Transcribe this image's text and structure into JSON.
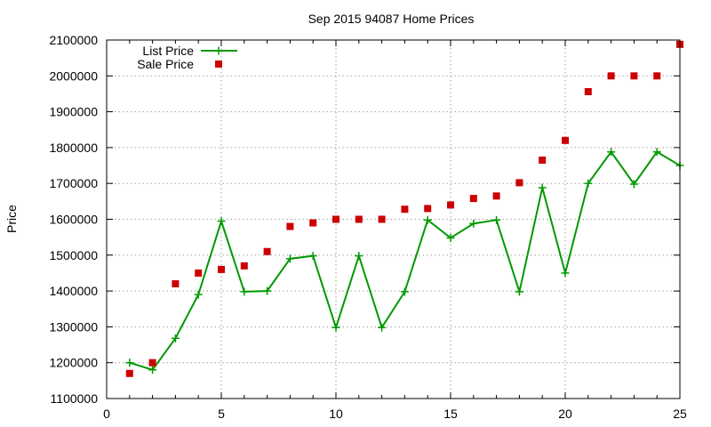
{
  "chart_data": {
    "type": "line",
    "title": "Sep 2015 94087 Home Prices",
    "xlabel": "",
    "ylabel": "Price",
    "xlim": [
      0,
      25
    ],
    "ylim": [
      1100000,
      2100000
    ],
    "x_ticks": [
      0,
      5,
      10,
      15,
      20,
      25
    ],
    "y_ticks": [
      1100000,
      1200000,
      1300000,
      1400000,
      1500000,
      1600000,
      1700000,
      1800000,
      1900000,
      2000000,
      2100000
    ],
    "grid": true,
    "legend_position": "top-left",
    "series": [
      {
        "name": "List Price",
        "style": "line+crosses",
        "color": "#009900",
        "x": [
          1,
          2,
          3,
          4,
          5,
          6,
          7,
          8,
          9,
          10,
          11,
          12,
          13,
          14,
          15,
          16,
          17,
          18,
          19,
          20,
          21,
          22,
          23,
          24,
          25
        ],
        "values": [
          1200000,
          1180000,
          1268000,
          1390000,
          1595000,
          1398000,
          1400000,
          1490000,
          1498000,
          1298000,
          1498000,
          1298000,
          1398000,
          1598000,
          1548000,
          1588000,
          1598000,
          1398000,
          1688000,
          1450000,
          1700000,
          1788000,
          1698000,
          1788000,
          1750000
        ]
      },
      {
        "name": "Sale Price",
        "style": "squares",
        "color": "#cc0000",
        "x": [
          1,
          2,
          3,
          4,
          5,
          6,
          7,
          8,
          9,
          10,
          11,
          12,
          13,
          14,
          15,
          16,
          17,
          18,
          19,
          20,
          21,
          22,
          23,
          24,
          25
        ],
        "values": [
          1170000,
          1200000,
          1420000,
          1450000,
          1460000,
          1470000,
          1510000,
          1580000,
          1590000,
          1600000,
          1600000,
          1600000,
          1628000,
          1630000,
          1640000,
          1658000,
          1665000,
          1702000,
          1765000,
          1820000,
          1956000,
          2000000,
          2000000,
          2000000,
          2088000
        ]
      }
    ]
  }
}
